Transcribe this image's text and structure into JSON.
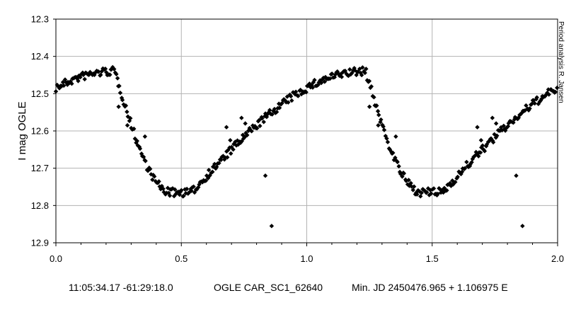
{
  "chart_data": {
    "type": "scatter",
    "title": "",
    "xlabel": "",
    "ylabel": "I mag OGLE",
    "xlim": [
      0.0,
      2.0
    ],
    "ylim": [
      12.3,
      12.9
    ],
    "y_inverted": true,
    "grid": true,
    "legend": "none",
    "marker": "diamond",
    "marker_color": "#000000",
    "x_ticks": [
      "0.0",
      "0.5",
      "1.0",
      "1.5",
      "2.0"
    ],
    "x_tick_values": [
      0.0,
      0.5,
      1.0,
      1.5,
      2.0
    ],
    "y_ticks": [
      "12.3",
      "12.4",
      "12.5",
      "12.6",
      "12.7",
      "12.8",
      "12.9"
    ],
    "y_tick_values": [
      12.3,
      12.4,
      12.5,
      12.6,
      12.7,
      12.8,
      12.9
    ],
    "side_note": "Period analysis  R. Jansen",
    "curve_model": {
      "period": 1.0,
      "mag_max": 12.44,
      "mag_min": 12.765,
      "phase_of_max": 0.235,
      "phase_min_start": 0.46,
      "phase_min_end": 0.54
    },
    "outliers": [
      {
        "x": 0.25,
        "y": 12.535
      },
      {
        "x": 0.285,
        "y": 12.585
      },
      {
        "x": 0.355,
        "y": 12.615
      },
      {
        "x": 0.68,
        "y": 12.59
      },
      {
        "x": 0.695,
        "y": 12.625
      },
      {
        "x": 0.74,
        "y": 12.565
      },
      {
        "x": 0.755,
        "y": 12.58
      },
      {
        "x": 0.835,
        "y": 12.72
      },
      {
        "x": 0.86,
        "y": 12.855
      },
      {
        "x": 1.25,
        "y": 12.535
      },
      {
        "x": 1.285,
        "y": 12.585
      },
      {
        "x": 1.355,
        "y": 12.615
      },
      {
        "x": 1.68,
        "y": 12.59
      },
      {
        "x": 1.695,
        "y": 12.625
      },
      {
        "x": 1.74,
        "y": 12.565
      },
      {
        "x": 1.755,
        "y": 12.58
      },
      {
        "x": 1.835,
        "y": 12.72
      },
      {
        "x": 1.86,
        "y": 12.855
      }
    ]
  },
  "footer": {
    "coordinates": "11:05:34.17 -61:29:18.0",
    "star_id": "OGLE CAR_SC1_62640",
    "ephemeris": "Min. JD 2450476.965 + 1.106975 E"
  }
}
